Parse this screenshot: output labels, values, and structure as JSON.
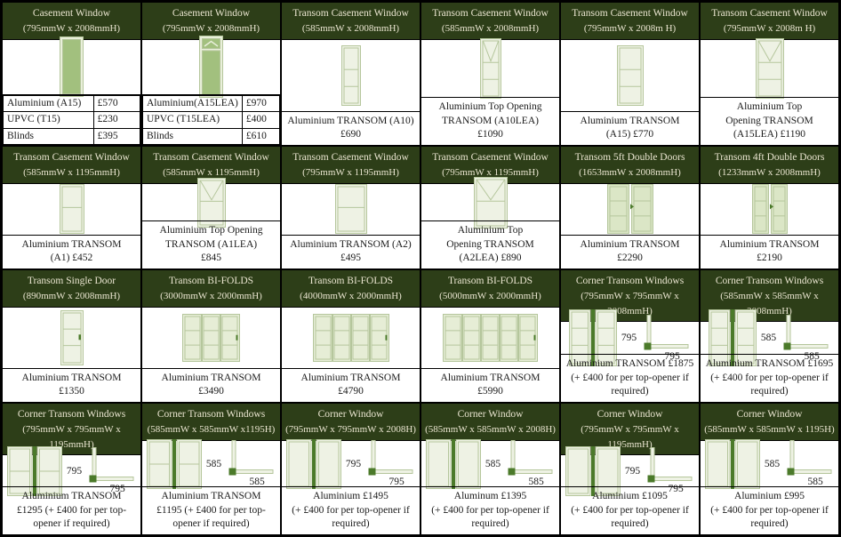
{
  "document_title": "Window and Door Price List",
  "colors": {
    "header_bg": "#2d3e18",
    "header_text": "#eae5d0",
    "casement_fill": "#a2c07e",
    "frame_light": "#e9efda",
    "frame_stroke": "#b5c69c",
    "pane_fill": "#eef2e4",
    "door_fill": "#dbe6c6",
    "bifold_fill": "#e6edd6",
    "post_green": "#4b7a2a",
    "grid_line": "#000000",
    "body_text": "#1a1a1a"
  },
  "cells": [
    {
      "title": "Casement Window",
      "dims": "(795mmW x 2008mmH)",
      "diagram": "casement",
      "price_table": [
        {
          "item": "Aluminium (A15)",
          "price": "£570"
        },
        {
          "item": "UPVC (T15)",
          "price": "£230"
        },
        {
          "item": "Blinds",
          "price": "£395"
        }
      ]
    },
    {
      "title": "Casement Window",
      "dims": "(795mmW x 2008mmH)",
      "diagram": "casement-top",
      "price_table": [
        {
          "item": "Aluminium(A15LEA)",
          "price": "£970"
        },
        {
          "item": "UPVC (T15LEA)",
          "price": "£400"
        },
        {
          "item": "Blinds",
          "price": "£610"
        }
      ]
    },
    {
      "title": "Transom Casement Window",
      "dims": "(585mmW x 2008mmH)",
      "diagram": "transom3-narrow",
      "price_lines": [
        "Aluminium TRANSOM (A10)",
        "£690"
      ]
    },
    {
      "title": "Transom Casement Window",
      "dims": "(585mmW x 2008mmH)",
      "diagram": "transom3v-narrow",
      "price_lines": [
        "Aluminium Top Opening",
        "TRANSOM (A10LEA)",
        "£1090"
      ]
    },
    {
      "title": "Transom Casement Window",
      "dims": "(795mmW x 2008m H)",
      "diagram": "transom3-wide",
      "price_lines": [
        "Aluminium TRANSOM",
        "(A15) £770"
      ]
    },
    {
      "title": "Transom Casement Window",
      "dims": "(795mmW x 2008m H)",
      "diagram": "transom3v-wide",
      "price_lines": [
        "Aluminium Top",
        "Opening TRANSOM",
        "(A15LEA) £1190"
      ]
    },
    {
      "title": "Transom Casement Window",
      "dims": "(585mmW x 1195mmH)",
      "diagram": "transom2-narrow",
      "price_lines": [
        "Aluminium TRANSOM",
        "(A1) £452"
      ]
    },
    {
      "title": "Transom Casement Window",
      "dims": "(585mmW x 1195mmH)",
      "diagram": "transom2v-narrow",
      "price_lines": [
        "Aluminium Top Opening",
        "TRANSOM (A1LEA)",
        "£845"
      ]
    },
    {
      "title": "Transom Casement Window",
      "dims": "(795mmW x 1195mmH)",
      "diagram": "transom2-wide",
      "price_lines": [
        "Aluminium TRANSOM (A2)",
        "£495"
      ]
    },
    {
      "title": "Transom Casement Window",
      "dims": "(795mmW x 1195mmH)",
      "diagram": "transom2v-wide",
      "price_lines": [
        "Aluminium Top",
        "Opening TRANSOM",
        "(A2LEA) £890"
      ]
    },
    {
      "title": "Transom 5ft Double Doors",
      "dims": "(1653mmW x 2008mmH)",
      "diagram": "doors-5ft",
      "price_lines": [
        "Aluminium TRANSOM",
        "£2290"
      ]
    },
    {
      "title": "Transom 4ft Double Doors",
      "dims": "(1233mmW x 2008mmH)",
      "diagram": "doors-4ft",
      "price_lines": [
        "Aluminium TRANSOM",
        "£2190"
      ]
    },
    {
      "title": "Transom Single Door",
      "dims": "(890mmW x 2008mmH)",
      "diagram": "door-single",
      "price_lines": [
        "Aluminium TRANSOM",
        "£1350"
      ]
    },
    {
      "title": "Transom BI-FOLDS",
      "dims": "(3000mmW x 2000mmH)",
      "diagram": "bifold-3",
      "price_lines": [
        "Aluminium TRANSOM",
        "£3490"
      ]
    },
    {
      "title": "Transom BI-FOLDS",
      "dims": "(4000mmW x 2000mmH)",
      "diagram": "bifold-4",
      "price_lines": [
        "Aluminium TRANSOM",
        "£4790"
      ]
    },
    {
      "title": "Transom BI-FOLDS",
      "dims": "(5000mmW x 2000mmH)",
      "diagram": "bifold-5",
      "price_lines": [
        "Aluminium TRANSOM",
        "£5990"
      ]
    },
    {
      "title": "Corner Transom Windows",
      "dims": "(795mmW x 795mmW x 2008mmH)",
      "diagram": "corner-transom3",
      "plan": {
        "v": "795",
        "h": "795"
      },
      "price_lines": [
        "Aluminium TRANSOM £1875",
        "(+ £400 for per top-opener if required)"
      ]
    },
    {
      "title": "Corner Transom Windows",
      "dims": "(585mmW x 585mmW x 2008mmH)",
      "diagram": "corner-transom3",
      "plan": {
        "v": "585",
        "h": "585"
      },
      "price_lines": [
        "Aluminium TRANSOM £1695",
        "(+ £400 for per top-opener if required)"
      ]
    },
    {
      "title": "Corner Transom Windows",
      "dims": "(795mmW x 795mmW x 1195mmH)",
      "diagram": "corner-transom2",
      "plan": {
        "v": "795",
        "h": "795"
      },
      "price_lines": [
        "Aluminium TRANSOM",
        "£1295 (+ £400 for per top-opener if required)"
      ]
    },
    {
      "title": "Corner Transom Windows",
      "dims": "(585mmW x 585mmW x1195H)",
      "diagram": "corner-transom2",
      "plan": {
        "v": "585",
        "h": "585"
      },
      "price_lines": [
        "Aluminium TRANSOM",
        "£1195 (+ £400 for per top-opener if required)"
      ]
    },
    {
      "title": "Corner Window",
      "dims": "(795mmW x 795mmW x 2008H)",
      "diagram": "corner-plain",
      "plan": {
        "v": "795",
        "h": "795"
      },
      "price_lines": [
        "Aluminium £1495",
        "(+ £400 for per top-opener if required)"
      ]
    },
    {
      "title": "Corner Window",
      "dims": "(585mmW x 585mmW x 2008H)",
      "diagram": "corner-plain",
      "plan": {
        "v": "585",
        "h": "585"
      },
      "price_lines": [
        "Aluminum £1395",
        "(+ £400 for per top-opener if required)"
      ]
    },
    {
      "title": "Corner Window",
      "dims": "(795mmW x 795mmW x 1195mmH)",
      "diagram": "corner-plain",
      "plan": {
        "v": "795",
        "h": "795"
      },
      "price_lines": [
        "Aluminium £1095",
        "(+ £400 for per top-opener if required)"
      ]
    },
    {
      "title": "Corner Window",
      "dims": "(585mmW x 585mmW x 1195H)",
      "diagram": "corner-plain",
      "plan": {
        "v": "585",
        "h": "585"
      },
      "price_lines": [
        "Aluminium £995",
        "(+ £400 for per top-opener if required)"
      ]
    }
  ]
}
